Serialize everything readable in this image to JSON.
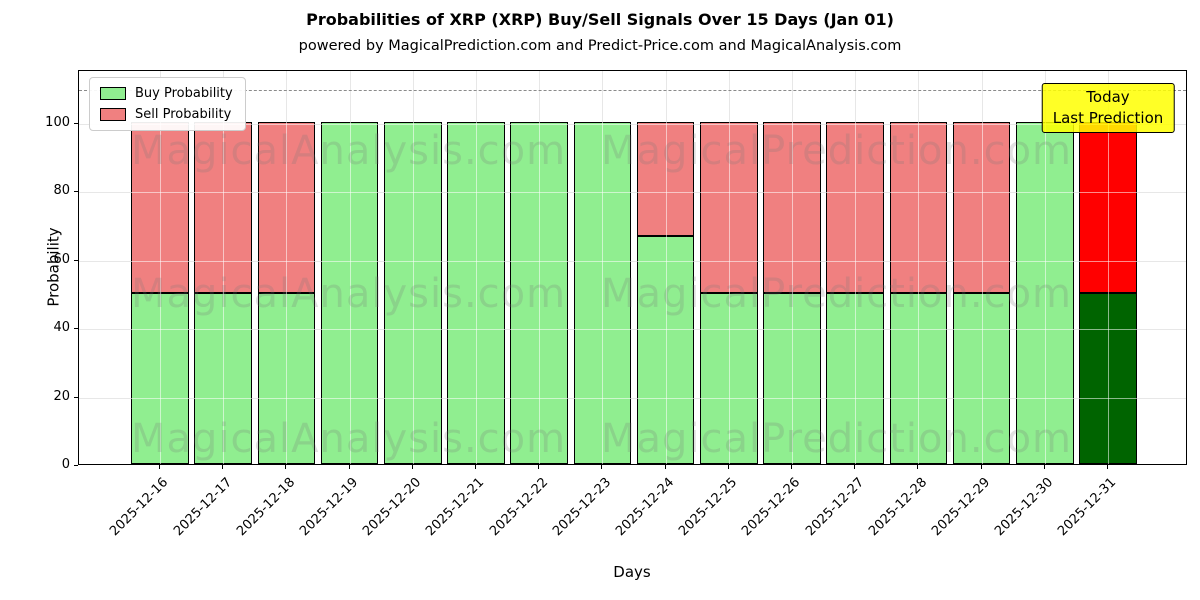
{
  "title": "Probabilities of XRP (XRP) Buy/Sell Signals Over 15 Days (Jan 01)",
  "subtitle": "powered by MagicalPrediction.com and Predict-Price.com and MagicalAnalysis.com",
  "legend": [
    {
      "label": "Buy Probability",
      "color": "#90EE90"
    },
    {
      "label": "Sell Probability",
      "color": "#F08080"
    }
  ],
  "annotation": {
    "lines": [
      "Today",
      "Last Prediction"
    ],
    "bg_color": "#FFFF00"
  },
  "axes": {
    "ylabel": "Probability",
    "xlabel": "Days",
    "yticks": [
      0,
      20,
      40,
      60,
      80,
      100
    ]
  },
  "watermarks": [
    "MagicalAnalysis.com",
    "MagicalPrediction.com"
  ],
  "chart_data": {
    "type": "bar",
    "stacked": true,
    "title": "Probabilities of XRP (XRP) Buy/Sell Signals Over 15 Days (Jan 01)",
    "xlabel": "Days",
    "ylabel": "Probability",
    "ylim": [
      0,
      115.5
    ],
    "grid": true,
    "legend_position": "upper left",
    "dashed_reference_line_y": 110,
    "categories": [
      "2025-12-16",
      "2025-12-17",
      "2025-12-18",
      "2025-12-19",
      "2025-12-20",
      "2025-12-21",
      "2025-12-22",
      "2025-12-23",
      "2025-12-24",
      "2025-12-25",
      "2025-12-26",
      "2025-12-27",
      "2025-12-28",
      "2025-12-29",
      "2025-12-30",
      "2025-12-31"
    ],
    "series": [
      {
        "name": "Buy Probability",
        "color": "#90EE90",
        "values": [
          50,
          50,
          50,
          100,
          100,
          100,
          100,
          100,
          66.7,
          50,
          50,
          50,
          50,
          50,
          100,
          50
        ]
      },
      {
        "name": "Sell Probability",
        "color": "#F08080",
        "values": [
          50,
          50,
          50,
          0,
          0,
          0,
          0,
          0,
          33.3,
          50,
          50,
          50,
          50,
          50,
          0,
          50
        ]
      }
    ],
    "today_index": 15,
    "today_colors": {
      "buy": "#006400",
      "sell": "#FF0000"
    }
  }
}
